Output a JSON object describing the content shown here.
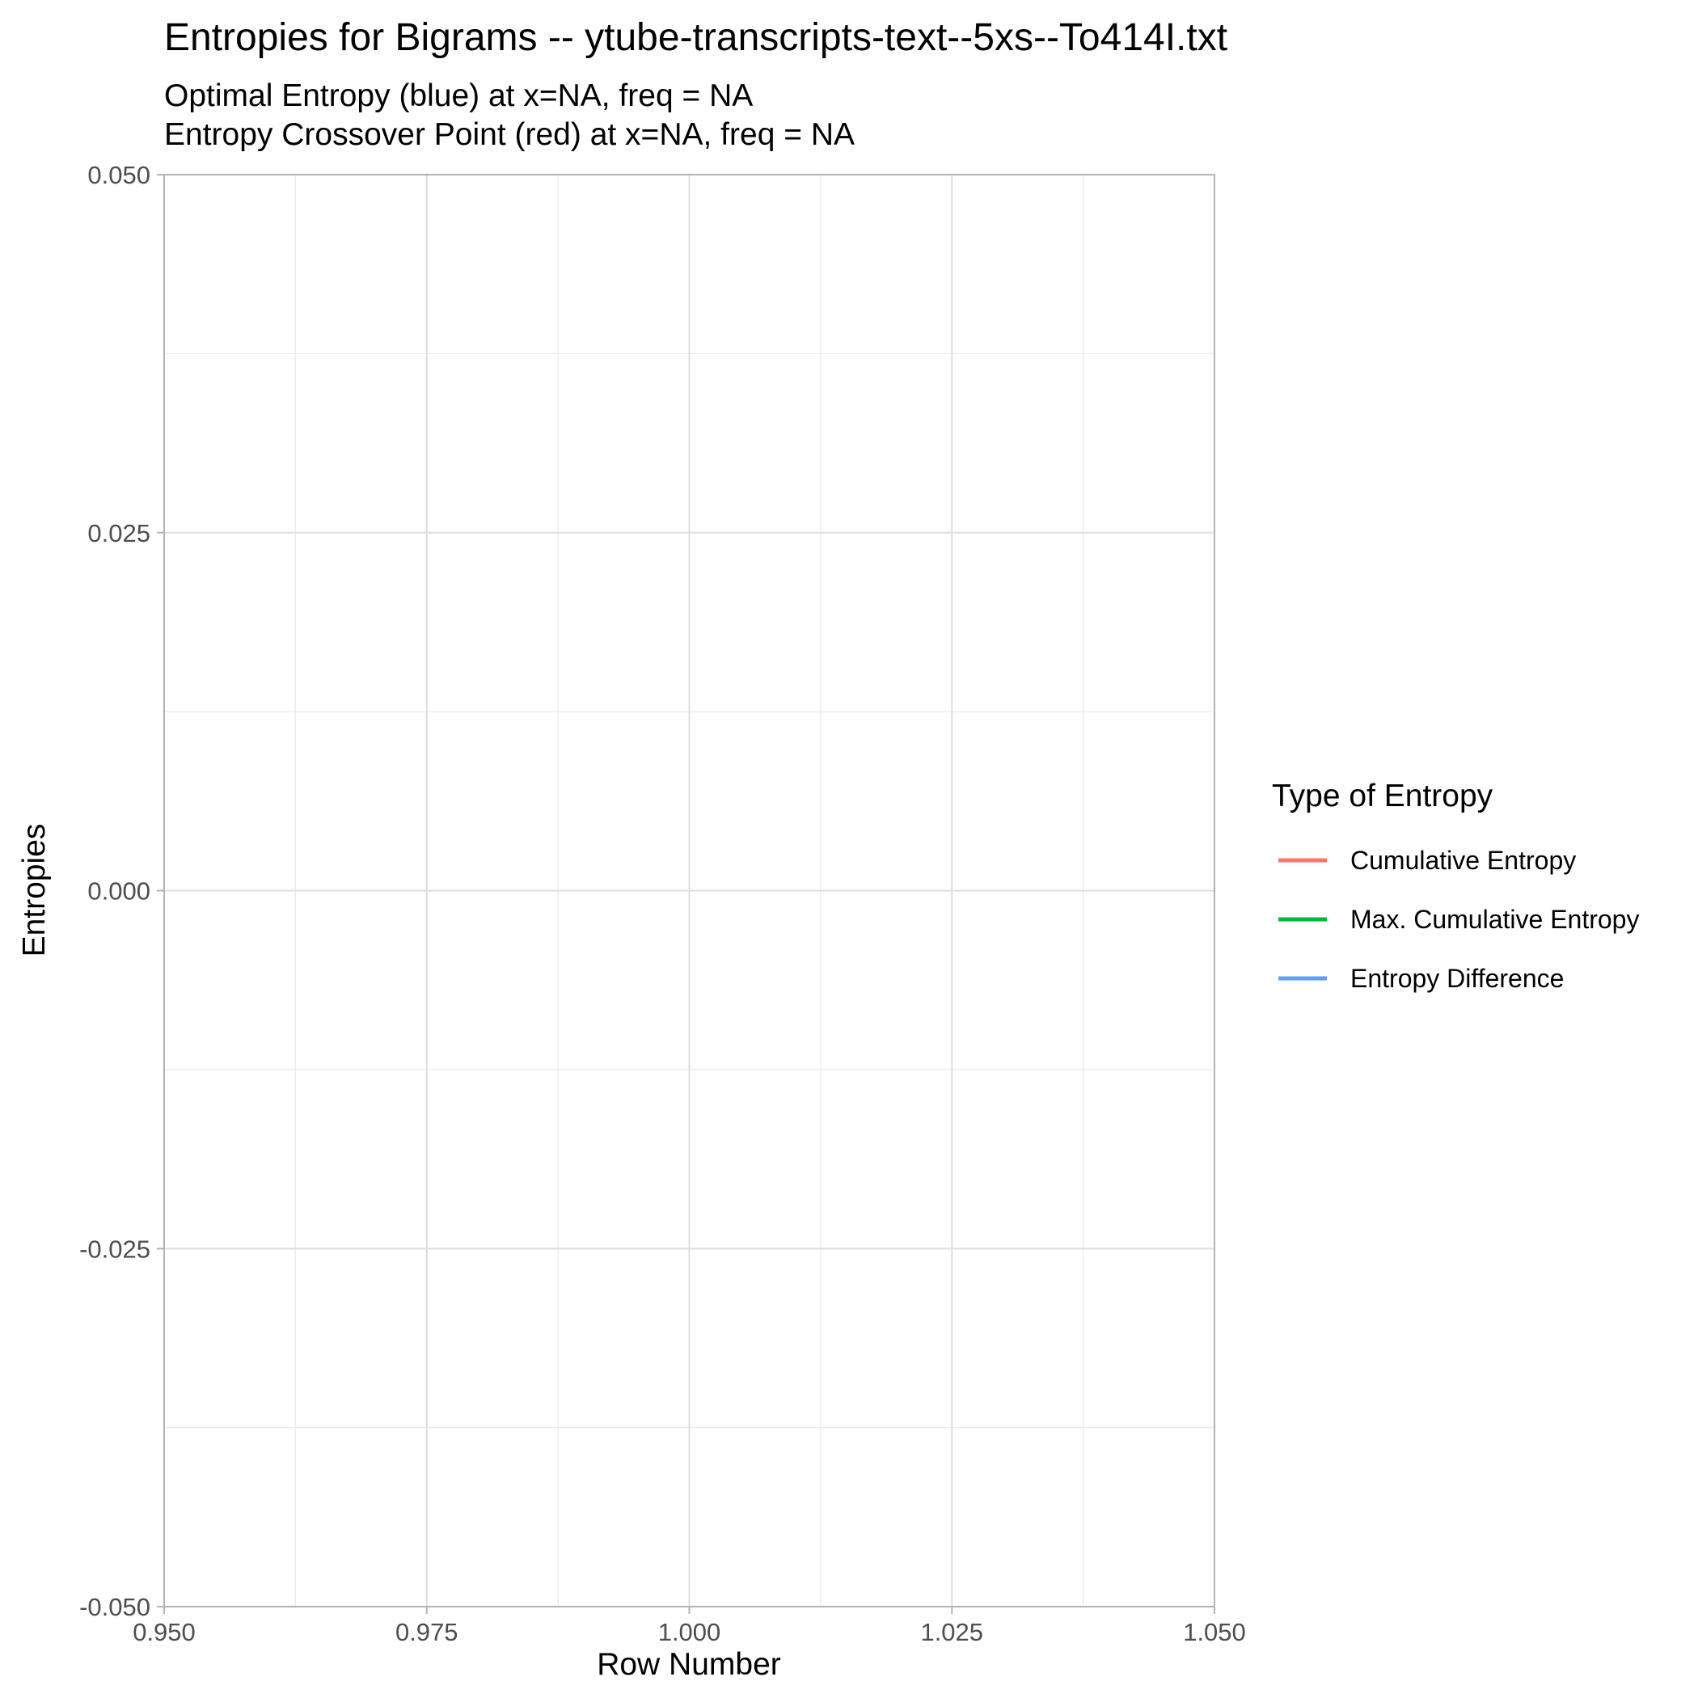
{
  "chart_data": {
    "type": "line",
    "title": "Entropies for Bigrams -- ytube-transcripts-text--5xs--To414I.txt",
    "subtitle_lines": [
      "Optimal Entropy (blue) at x=NA, freq = NA",
      "Entropy Crossover Point (red) at x=NA, freq = NA"
    ],
    "xlabel": "Row Number",
    "ylabel": "Entropies",
    "xlim": [
      0.95,
      1.05
    ],
    "ylim": [
      -0.05,
      0.05
    ],
    "x_ticks": [
      0.95,
      0.975,
      1.0,
      1.025,
      1.05
    ],
    "x_tick_labels": [
      "0.950",
      "0.975",
      "1.000",
      "1.025",
      "1.050"
    ],
    "y_ticks": [
      -0.05,
      -0.025,
      0.0,
      0.025,
      0.05
    ],
    "y_tick_labels": [
      "-0.050",
      "-0.025",
      "0.000",
      "0.025",
      "0.050"
    ],
    "grid": true,
    "legend": {
      "title": "Type of Entropy",
      "placement": "right"
    },
    "series": [
      {
        "name": "Cumulative Entropy",
        "color": "#f8766d",
        "x": [],
        "y": []
      },
      {
        "name": "Max. Cumulative Entropy",
        "color": "#00ba38",
        "x": [],
        "y": []
      },
      {
        "name": "Entropy Difference",
        "color": "#619cff",
        "x": [],
        "y": []
      }
    ]
  }
}
